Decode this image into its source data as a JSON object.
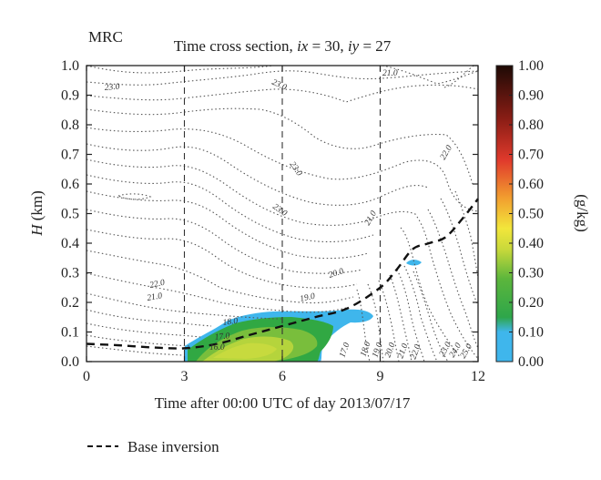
{
  "chart_data": {
    "type": "heatmap",
    "panel_label": "MRC",
    "title_prefix": "Time cross section, ",
    "title_ix": "ix",
    "title_ix_val": " = 30, ",
    "title_iy": "iy",
    "title_iy_val": " = 27",
    "xlabel": "Time after 00:00 UTC of day 2013/07/17",
    "ylabel_var": "H",
    "ylabel_unit": " (km)",
    "xlim": [
      0,
      12
    ],
    "ylim": [
      0,
      1.0
    ],
    "x_ticks": [
      0,
      3,
      6,
      9,
      12
    ],
    "x_tick_labels": [
      "0",
      "3",
      "6",
      "9",
      "12"
    ],
    "y_ticks": [
      0.0,
      0.1,
      0.2,
      0.3,
      0.4,
      0.5,
      0.6,
      0.7,
      0.8,
      0.9,
      1.0
    ],
    "y_tick_labels": [
      "0.0",
      "0.1",
      "0.2",
      "0.3",
      "0.4",
      "0.5",
      "0.6",
      "0.7",
      "0.8",
      "0.9",
      "1.0"
    ],
    "vertical_lines_x": [
      3,
      6,
      9
    ],
    "colorbar": {
      "label": "(g/kg)",
      "range": [
        0,
        1.0
      ],
      "ticks": [
        0.0,
        0.1,
        0.2,
        0.3,
        0.4,
        0.5,
        0.6,
        0.7,
        0.8,
        0.9,
        1.0
      ],
      "tick_labels": [
        "0.00",
        "0.10",
        "0.20",
        "0.30",
        "0.40",
        "0.50",
        "0.60",
        "0.70",
        "0.80",
        "0.90",
        "1.00"
      ],
      "colors": [
        "#3fb6ec",
        "#31a843",
        "#9ac93a",
        "#f1e43a",
        "#f29b2e",
        "#e0312d",
        "#7a1a14",
        "#2a0c06"
      ]
    },
    "series": [
      {
        "name": "Base inversion",
        "style": "dashed",
        "x": [
          0,
          1,
          2,
          3,
          4,
          5,
          6,
          7,
          8,
          9,
          9.5,
          10,
          10.5,
          11,
          11.5,
          12
        ],
        "y": [
          0.06,
          0.055,
          0.048,
          0.045,
          0.06,
          0.09,
          0.12,
          0.15,
          0.18,
          0.25,
          0.31,
          0.38,
          0.4,
          0.42,
          0.48,
          0.55
        ]
      }
    ],
    "contour_labels": [
      "23.0",
      "23.0",
      "21.0",
      "23.0",
      "23.0",
      "22.0",
      "21.0",
      "22.0",
      "21.0",
      "20.0",
      "19.0",
      "18.0",
      "17.0",
      "16.0",
      "17.0",
      "18.0",
      "19.0",
      "20.0",
      "21.0",
      "22.0",
      "23.0",
      "24.0",
      "25.0"
    ],
    "legend": [
      {
        "label": "Base inversion",
        "style": "dashed"
      }
    ]
  }
}
